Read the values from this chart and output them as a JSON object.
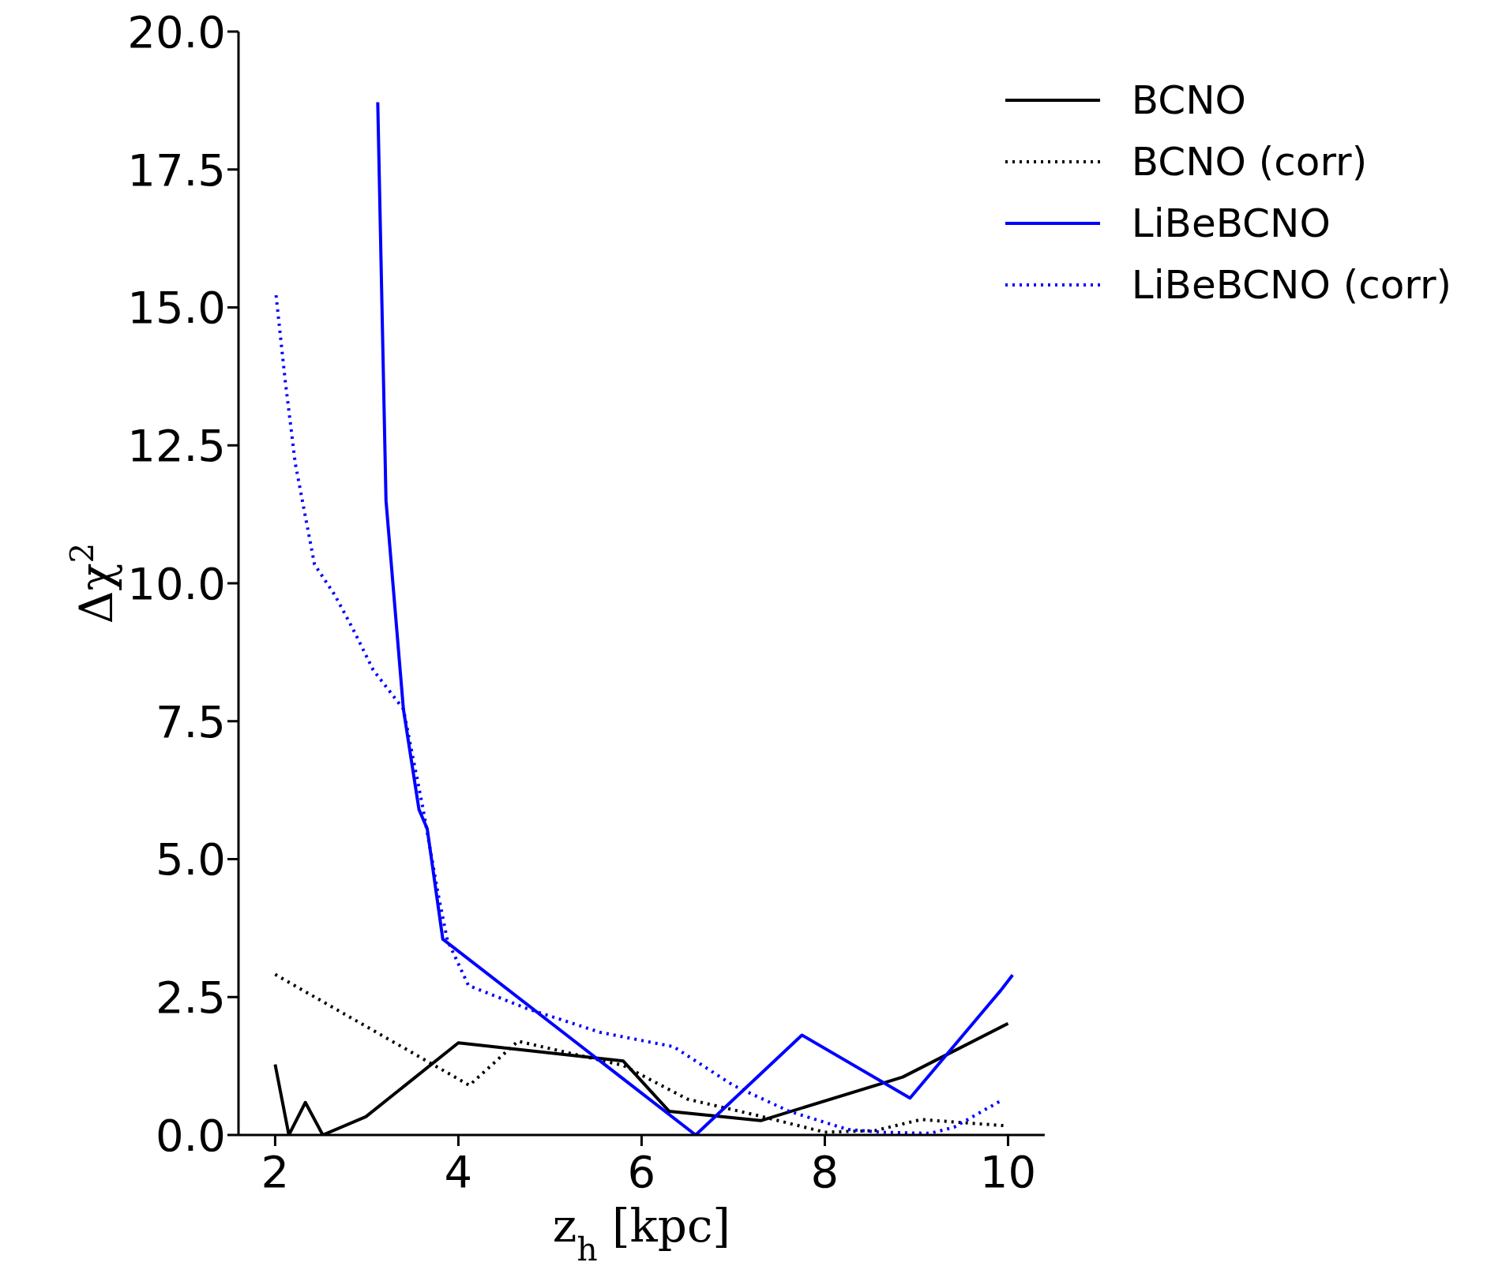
{
  "chart_data": {
    "type": "line",
    "xlabel": "z$_{h}$ [kpc]",
    "ylabel": "Δχ$^{2}$",
    "xlim": [
      1.6,
      10.4
    ],
    "xticks": [
      2,
      4,
      6,
      8,
      10
    ],
    "ylim": [
      0,
      20
    ],
    "yticks": [
      {
        "value": 0,
        "label": "0.0"
      },
      {
        "value": 2.5,
        "label": "2.5"
      },
      {
        "value": 5,
        "label": "5.0"
      },
      {
        "value": 7.5,
        "label": "7.5"
      },
      {
        "value": 10,
        "label": "10.0"
      },
      {
        "value": 12.5,
        "label": "12.5"
      },
      {
        "value": 15,
        "label": "15.0"
      },
      {
        "value": 17.5,
        "label": "17.5"
      },
      {
        "value": 20,
        "label": "20.0"
      }
    ],
    "legend": "top right",
    "grid": false,
    "marker": "none",
    "series": [
      {
        "name": "BCNO",
        "color": "#000000",
        "line_style": "solid",
        "x": [
          2,
          2.15,
          2.33,
          2.52,
          2.99,
          4,
          5.8,
          6.3,
          7.3,
          8.85,
          10
        ],
        "values": [
          1.28,
          0,
          0.59,
          0,
          0.33,
          1.67,
          1.34,
          0.43,
          0.26,
          1.05,
          2.02
        ]
      },
      {
        "name": "BCNO (corr)",
        "color": "#000000",
        "line_style": "dotted",
        "x": [
          2,
          4.12,
          4.65,
          5.8,
          6.5,
          7.3,
          8,
          8.55,
          9.05,
          9.95
        ],
        "values": [
          2.91,
          0.9,
          1.7,
          1.26,
          0.65,
          0.34,
          0.05,
          0.08,
          0.28,
          0.17
        ]
      },
      {
        "name": "LiBeBCNO",
        "color": "#0000ff",
        "line_style": "solid",
        "x": [
          3.12,
          3.21,
          3.4,
          3.57,
          3.66,
          3.83,
          6.59,
          7.75,
          8.93,
          9.92,
          10.05
        ],
        "values": [
          18.72,
          11.5,
          7.72,
          5.9,
          5.55,
          3.55,
          0,
          1.81,
          0.67,
          2.62,
          2.9
        ]
      },
      {
        "name": "LiBeBCNO (corr)",
        "color": "#0000ff",
        "line_style": "dotted",
        "x": [
          2.01,
          2.11,
          2.22,
          2.43,
          2.65,
          2.85,
          3.07,
          3.4,
          3.61,
          3.78,
          3.88,
          4.11,
          4.75,
          5.55,
          6.35,
          7,
          7.61,
          8.25,
          8.61,
          9.15,
          9.41,
          9.92
        ],
        "values": [
          15.22,
          13.67,
          12.17,
          10.34,
          9.79,
          9.17,
          8.43,
          7.72,
          5.95,
          4.36,
          3.53,
          2.71,
          2.29,
          1.86,
          1.6,
          0.9,
          0.43,
          0.1,
          0.05,
          0.03,
          0.14,
          0.62
        ]
      }
    ]
  }
}
